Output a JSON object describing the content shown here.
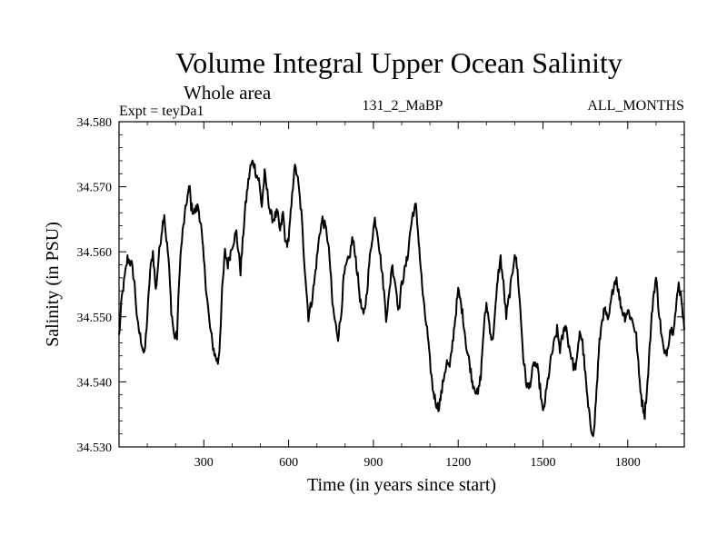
{
  "chart_data": {
    "type": "line",
    "title": "Volume Integral Upper Ocean Salinity",
    "subtitle": "Whole area",
    "left_label": "Expt = teyDa1",
    "center_label": "131_2_MaBP",
    "right_label": "ALL_MONTHS",
    "xlabel": "Time (in years since start)",
    "ylabel": "Salinity (in PSU)",
    "xlim": [
      0,
      2000
    ],
    "ylim": [
      34.53,
      34.58
    ],
    "x_ticks": [
      300,
      600,
      900,
      1200,
      1500,
      1800
    ],
    "x_tick_labels": [
      "300",
      "600",
      "900",
      "1200",
      "1500",
      "1800"
    ],
    "y_ticks": [
      34.53,
      34.54,
      34.55,
      34.56,
      34.57,
      34.58
    ],
    "y_tick_labels": [
      "34.530",
      "34.540",
      "34.550",
      "34.560",
      "34.570",
      "34.580"
    ],
    "grid": false,
    "series": [
      {
        "name": "Salinity",
        "color": "#000000",
        "x": [
          0,
          10,
          20,
          30,
          45,
          55,
          65,
          80,
          90,
          100,
          110,
          120,
          130,
          140,
          150,
          160,
          165,
          175,
          185,
          195,
          205,
          215,
          225,
          240,
          250,
          255,
          265,
          280,
          290,
          305,
          320,
          330,
          340,
          350,
          355,
          365,
          375,
          385,
          400,
          415,
          430,
          445,
          455,
          465,
          475,
          485,
          495,
          505,
          515,
          525,
          535,
          545,
          560,
          570,
          580,
          590,
          600,
          610,
          620,
          630,
          645,
          655,
          670,
          680,
          690,
          700,
          710,
          720,
          735,
          745,
          755,
          765,
          775,
          785,
          795,
          805,
          815,
          825,
          835,
          845,
          855,
          865,
          875,
          885,
          895,
          905,
          915,
          925,
          935,
          945,
          955,
          965,
          975,
          990,
          1000,
          1010,
          1020,
          1030,
          1040,
          1050,
          1060,
          1070,
          1080,
          1090,
          1100,
          1110,
          1120,
          1130,
          1140,
          1150,
          1160,
          1170,
          1180,
          1190,
          1200,
          1210,
          1220,
          1230,
          1240,
          1250,
          1260,
          1270,
          1280,
          1290,
          1300,
          1310,
          1320,
          1330,
          1340,
          1350,
          1360,
          1370,
          1380,
          1390,
          1400,
          1410,
          1420,
          1430,
          1440,
          1450,
          1460,
          1470,
          1480,
          1490,
          1500,
          1510,
          1520,
          1530,
          1540,
          1550,
          1560,
          1570,
          1580,
          1590,
          1600,
          1610,
          1620,
          1630,
          1640,
          1650,
          1660,
          1670,
          1680,
          1690,
          1700,
          1710,
          1720,
          1730,
          1740,
          1750,
          1760,
          1770,
          1780,
          1790,
          1800,
          1810,
          1820,
          1830,
          1840,
          1850,
          1860,
          1870,
          1880,
          1890,
          1900,
          1910,
          1920,
          1930,
          1940,
          1950,
          1960,
          1970,
          1980,
          1990,
          2000
        ],
        "values": [
          34.547,
          34.553,
          34.556,
          34.559,
          34.558,
          34.555,
          34.549,
          34.546,
          34.544,
          34.55,
          34.557,
          34.56,
          34.554,
          34.559,
          34.563,
          34.566,
          34.563,
          34.559,
          34.551,
          34.547,
          34.547,
          34.558,
          34.563,
          34.568,
          34.57,
          34.567,
          34.566,
          34.567,
          34.564,
          34.556,
          34.549,
          34.546,
          34.544,
          34.543,
          34.545,
          34.554,
          34.56,
          34.558,
          34.561,
          34.563,
          34.557,
          34.566,
          34.57,
          34.573,
          34.574,
          34.572,
          34.571,
          34.567,
          34.572,
          34.569,
          34.566,
          34.565,
          34.566,
          34.563,
          34.566,
          34.561,
          34.562,
          34.567,
          34.573,
          34.572,
          34.566,
          34.559,
          34.55,
          34.552,
          34.555,
          34.559,
          34.563,
          34.565,
          34.563,
          34.559,
          34.552,
          34.549,
          34.547,
          34.55,
          34.556,
          34.558,
          34.559,
          34.562,
          34.56,
          34.556,
          34.552,
          34.55,
          34.553,
          34.558,
          34.562,
          34.565,
          34.563,
          34.559,
          34.555,
          34.55,
          34.553,
          34.558,
          34.556,
          34.551,
          34.555,
          34.557,
          34.559,
          34.563,
          34.566,
          34.567,
          34.562,
          34.556,
          34.551,
          34.548,
          34.543,
          34.539,
          34.537,
          34.536,
          34.538,
          34.541,
          34.543,
          34.542,
          34.546,
          34.55,
          34.554,
          34.552,
          34.549,
          34.545,
          34.543,
          34.54,
          34.539,
          34.538,
          34.541,
          34.548,
          34.552,
          34.549,
          34.546,
          34.55,
          34.556,
          34.559,
          34.555,
          34.55,
          34.553,
          34.556,
          34.56,
          34.557,
          34.551,
          34.544,
          34.54,
          34.539,
          34.541,
          34.543,
          34.542,
          34.539,
          34.535,
          34.538,
          34.541,
          34.544,
          34.546,
          34.548,
          34.545,
          34.547,
          34.549,
          34.546,
          34.544,
          34.542,
          34.543,
          34.548,
          34.546,
          34.541,
          34.536,
          34.533,
          34.532,
          34.539,
          34.546,
          34.55,
          34.551,
          34.549,
          34.552,
          34.555,
          34.556,
          34.553,
          34.551,
          34.55,
          34.551,
          34.55,
          34.549,
          34.547,
          34.541,
          34.537,
          34.535,
          34.54,
          34.547,
          34.553,
          34.556,
          34.551,
          34.547,
          34.544,
          34.545,
          34.548,
          34.548,
          34.551,
          34.555,
          34.553,
          34.548
        ]
      }
    ]
  }
}
